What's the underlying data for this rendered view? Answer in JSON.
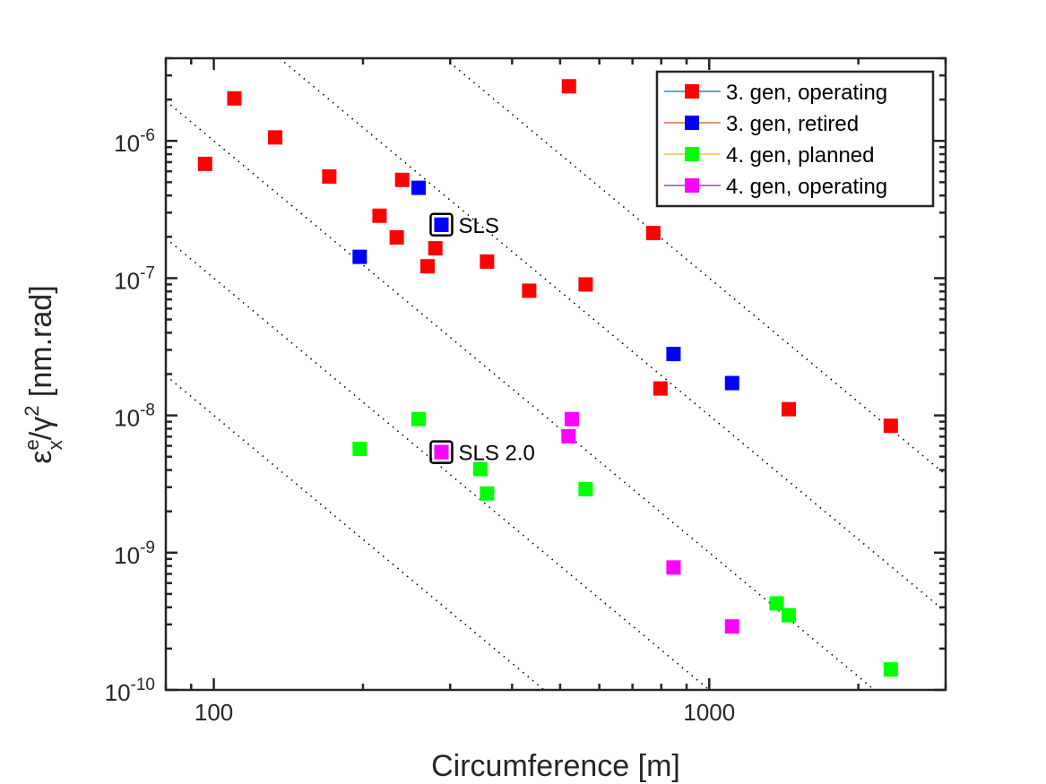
{
  "chart_data": {
    "type": "scatter",
    "title": "",
    "xlabel": "Circumference [m]",
    "ylabel": {
      "symbol": "ε",
      "sup": "e",
      "sub": "x",
      "mid": "/γ",
      "sup2": "2",
      "unit": " [nm.rad]"
    },
    "xscale": "log",
    "yscale": "log",
    "xlim": [
      80,
      3000
    ],
    "ylim": [
      1e-10,
      4e-06
    ],
    "grid": false,
    "legend_position": "top-right",
    "x_ticks": [
      {
        "value": 100,
        "label": "100"
      },
      {
        "value": 1000,
        "label": "1000"
      }
    ],
    "y_ticks": [
      {
        "value": 1e-10,
        "base": "10",
        "exp": "-10"
      },
      {
        "value": 1e-09,
        "base": "10",
        "exp": "-9"
      },
      {
        "value": 1e-08,
        "base": "10",
        "exp": "-8"
      },
      {
        "value": 1e-07,
        "base": "10",
        "exp": "-7"
      },
      {
        "value": 1e-06,
        "base": "10",
        "exp": "-6"
      }
    ],
    "reference_lines": {
      "style": "dotted",
      "color": "#000000",
      "form": "y = k * x^-3",
      "k_values": [
        0.01,
        0.1,
        1,
        10,
        100
      ]
    },
    "series": [
      {
        "name": "3. gen, operating",
        "marker_color": "#FF0000",
        "line_color": "#0072BD",
        "x": [
          110,
          96,
          133,
          171,
          240,
          216,
          234,
          280,
          270,
          356,
          433,
          563,
          521,
          771,
          797,
          1447,
          2325
        ],
        "y": [
          2.04e-06,
          6.8e-07,
          1.06e-06,
          5.5e-07,
          5.2e-07,
          2.85e-07,
          1.98e-07,
          1.65e-07,
          1.22e-07,
          1.32e-07,
          8.1e-08,
          9e-08,
          2.5e-06,
          2.13e-07,
          1.57e-08,
          1.11e-08,
          8.4e-09
        ]
      },
      {
        "name": "3. gen, retired",
        "marker_color": "#0000FF",
        "line_color": "#D95319",
        "x": [
          259,
          288,
          197,
          847,
          1112
        ],
        "y": [
          4.55e-07,
          2.45e-07,
          1.43e-07,
          2.8e-08,
          1.72e-08
        ]
      },
      {
        "name": "4. gen, planned",
        "marker_color": "#00FF00",
        "line_color": "#EDB120",
        "x": [
          259,
          197,
          345,
          356,
          563,
          1368,
          1447,
          2325
        ],
        "y": [
          9.4e-09,
          5.7e-09,
          4.06e-09,
          2.7e-09,
          2.9e-09,
          4.27e-10,
          3.5e-10,
          1.41e-10
        ]
      },
      {
        "name": "4. gen, operating",
        "marker_color": "#FF00FF",
        "line_color": "#7E2F8E",
        "x": [
          528,
          520,
          288,
          847,
          1112
        ],
        "y": [
          9.4e-09,
          7.05e-09,
          5.4e-09,
          7.8e-10,
          2.9e-10
        ]
      }
    ],
    "annotations": [
      {
        "text": "SLS",
        "x": 288,
        "y": 2.45e-07,
        "marker_color": "#0000FF"
      },
      {
        "text": "SLS 2.0",
        "x": 288,
        "y": 5.4e-09,
        "marker_color": "#FF00FF"
      }
    ]
  }
}
